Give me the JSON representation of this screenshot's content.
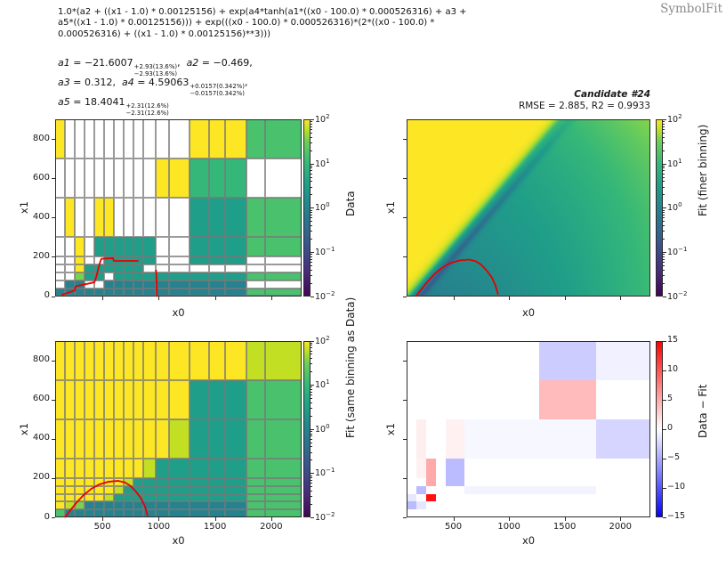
{
  "header": {
    "formula_lines": [
      "1.0*(a2 + ((x1 - 1.0) * 0.00125156) + exp(a4*tanh(a1*((x0 - 100.0) * 0.000526316) + a3 +",
      "a5*((x1 - 1.0) * 0.00125156))) + exp(((x0 - 100.0) * 0.000526316)*(2*((x0 - 100.0) *",
      "0.000526316) + ((x1 - 1.0) * 0.00125156)**3)))"
    ],
    "logo": "SymbolFit"
  },
  "parameters": {
    "lines": [
      [
        {
          "name": "a1",
          "eq": " = ",
          "value": "−21.6007",
          "err_up": "+2.93(13.6%)",
          "err_dn": "−2.93(13.6%)",
          "tail": ",  "
        },
        {
          "name": "a2",
          "eq": " = ",
          "value": "−0.469",
          "tail": ","
        }
      ],
      [
        {
          "name": "a3",
          "eq": " = ",
          "value": "0.312",
          "tail": ",  "
        },
        {
          "name": "a4",
          "eq": " = ",
          "value": "4.59063",
          "err_up": "+0.0157(0.342%)",
          "err_dn": "−0.0157(0.342%)",
          "tail": ","
        }
      ],
      [
        {
          "name": "a5",
          "eq": " = ",
          "value": "18.4041",
          "err_up": "+2.31(12.6%)",
          "err_dn": "−2.31(12.6%)",
          "tail": ""
        }
      ]
    ]
  },
  "panels": {
    "data": {
      "xlabel": "x0",
      "ylabel": "x1",
      "cbar_label": "Data"
    },
    "fit_fine": {
      "title": "Candidate #24",
      "subtitle": "RMSE = 2.885, R2 = 0.9933",
      "xlabel": "x0",
      "ylabel": "x1",
      "cbar_label": "Fit (finer binning)"
    },
    "fit_same": {
      "xlabel": "x0",
      "ylabel": "x1",
      "cbar_label": "Fit (same binning as Data)"
    },
    "diff": {
      "xlabel": "x0",
      "ylabel": "x1",
      "cbar_label": "Data − Fit"
    }
  },
  "axis": {
    "xticks": [
      500,
      1000,
      1500,
      2000
    ],
    "yticks": [
      0,
      200,
      400,
      600,
      800
    ],
    "cbar_log_exponents": [
      2,
      1,
      0,
      -1,
      -2
    ],
    "cbar_diff_ticks": [
      15,
      10,
      5,
      0,
      -5,
      -10,
      -15
    ]
  },
  "chart_data": {
    "type": "heatmap",
    "candidate": 24,
    "rmse": 2.885,
    "r2": 0.9933,
    "formula": "1.0*(a2 + ((x1 - 1.0) * 0.00125156) + exp(a4*tanh(a1*((x0 - 100.0) * 0.000526316) + a3 + a5*((x1 - 1.0) * 0.00125156))) + exp(((x0 - 100.0) * 0.000526316)*(2*((x0 - 100.0) * 0.000526316) + ((x1 - 1.0) * 0.00125156)**3)))",
    "params": {
      "a1": -21.6007,
      "a2": -0.469,
      "a3": 0.312,
      "a4": 4.59063,
      "a5": 18.4041
    },
    "param_errors": {
      "a1": "±2.93(13.6%)",
      "a4": "±0.0157(0.342%)",
      "a5": "±2.31(12.6%)"
    },
    "xlim": [
      80,
      2270
    ],
    "ylim": [
      0,
      900
    ],
    "color_scale": {
      "type": "log",
      "min": 0.01,
      "max": 100,
      "cmap": "viridis"
    },
    "diff_scale": {
      "type": "linear",
      "min": -15,
      "max": 15,
      "cmap": "bwr"
    },
    "x_edges": [
      80,
      167,
      254,
      341,
      428,
      515,
      602,
      689,
      776,
      863,
      973,
      1092,
      1274,
      1448,
      1590,
      1780,
      1946,
      2270
    ],
    "y_edges": [
      0,
      40,
      80,
      120,
      160,
      200,
      300,
      500,
      700,
      900
    ],
    "palette": {
      "W": "#ffffff",
      "Y": "#fde725",
      "LG": "#c2df23",
      "G2": "#7ad151",
      "G": "#4ac16d",
      "M": "#35b779",
      "T": "#1f9e89",
      "TD": "#26828e"
    },
    "data_grid": [
      [
        "TD",
        "TD",
        "TD",
        "TD",
        "TD",
        "TD",
        "TD",
        "TD",
        "TD",
        "TD",
        "TD",
        "TD",
        "TD",
        "TD",
        "TD",
        "G",
        "G"
      ],
      [
        "W",
        "TD",
        "TD",
        "W",
        "W",
        "TD",
        "TD",
        "TD",
        "TD",
        "TD",
        "TD",
        "TD",
        "TD",
        "TD",
        "TD",
        "W",
        "W"
      ],
      [
        "W",
        "W",
        "G2",
        "T",
        "T",
        "W",
        "T",
        "T",
        "T",
        "T",
        "T",
        "T",
        "T",
        "T",
        "T",
        "G",
        "G"
      ],
      [
        "W",
        "W",
        "Y",
        "T",
        "T",
        "T",
        "T",
        "T",
        "T",
        "W",
        "W",
        "W",
        "W",
        "W",
        "W",
        "W",
        "W"
      ],
      [
        "W",
        "W",
        "Y",
        "W",
        "W",
        "T",
        "T",
        "T",
        "T",
        "T",
        "W",
        "W",
        "T",
        "T",
        "T",
        "W",
        "W"
      ],
      [
        "W",
        "W",
        "Y",
        "W",
        "T",
        "T",
        "T",
        "T",
        "T",
        "T",
        "W",
        "W",
        "T",
        "T",
        "T",
        "G",
        "G"
      ],
      [
        "W",
        "Y",
        "W",
        "W",
        "Y",
        "Y",
        "W",
        "W",
        "W",
        "W",
        "W",
        "W",
        "T",
        "T",
        "T",
        "G",
        "G"
      ],
      [
        "W",
        "W",
        "W",
        "W",
        "W",
        "W",
        "W",
        "W",
        "W",
        "W",
        "Y",
        "Y",
        "M",
        "M",
        "M",
        "W",
        "W"
      ],
      [
        "Y",
        "W",
        "W",
        "W",
        "W",
        "W",
        "W",
        "W",
        "W",
        "W",
        "W",
        "W",
        "Y",
        "Y",
        "Y",
        "G",
        "G"
      ]
    ],
    "fit_grid": [
      [
        "G",
        "TD",
        "TD",
        "TD",
        "TD",
        "TD",
        "TD",
        "TD",
        "TD",
        "TD",
        "TD",
        "TD",
        "TD",
        "TD",
        "TD",
        "G",
        "G"
      ],
      [
        "Y",
        "LG",
        "G2",
        "TD",
        "TD",
        "TD",
        "TD",
        "TD",
        "TD",
        "TD",
        "TD",
        "TD",
        "TD",
        "TD",
        "TD",
        "G",
        "G"
      ],
      [
        "Y",
        "Y",
        "Y",
        "Y",
        "Y",
        "LG",
        "T",
        "T",
        "T",
        "T",
        "T",
        "T",
        "T",
        "T",
        "T",
        "G",
        "G"
      ],
      [
        "Y",
        "Y",
        "Y",
        "Y",
        "Y",
        "Y",
        "LG",
        "T",
        "T",
        "T",
        "T",
        "T",
        "T",
        "T",
        "T",
        "G",
        "G"
      ],
      [
        "Y",
        "Y",
        "Y",
        "Y",
        "Y",
        "Y",
        "Y",
        "LG",
        "T",
        "T",
        "T",
        "T",
        "T",
        "T",
        "T",
        "G",
        "G"
      ],
      [
        "Y",
        "Y",
        "Y",
        "Y",
        "Y",
        "Y",
        "Y",
        "Y",
        "Y",
        "LG",
        "T",
        "T",
        "T",
        "T",
        "T",
        "G",
        "G"
      ],
      [
        "Y",
        "Y",
        "Y",
        "Y",
        "Y",
        "Y",
        "Y",
        "Y",
        "Y",
        "Y",
        "Y",
        "LG",
        "T",
        "T",
        "T",
        "G",
        "G"
      ],
      [
        "Y",
        "Y",
        "Y",
        "Y",
        "Y",
        "Y",
        "Y",
        "Y",
        "Y",
        "Y",
        "Y",
        "Y",
        "T",
        "T",
        "T",
        "G",
        "G"
      ],
      [
        "Y",
        "Y",
        "Y",
        "Y",
        "Y",
        "Y",
        "Y",
        "Y",
        "Y",
        "Y",
        "Y",
        "Y",
        "Y",
        "Y",
        "Y",
        "LG",
        "LG"
      ]
    ],
    "diff_cells": [
      {
        "c": 12,
        "r": 8,
        "v": -3
      },
      {
        "c": 13,
        "r": 8,
        "v": -3
      },
      {
        "c": 14,
        "r": 8,
        "v": -3
      },
      {
        "c": 12,
        "r": 7,
        "v": 4
      },
      {
        "c": 13,
        "r": 7,
        "v": 4
      },
      {
        "c": 14,
        "r": 7,
        "v": 4
      },
      {
        "c": 15,
        "r": 6,
        "v": -2.5
      },
      {
        "c": 16,
        "r": 6,
        "v": -2.5
      },
      {
        "c": 1,
        "r": 6,
        "v": 1
      },
      {
        "c": 1,
        "r": 5,
        "v": 0.8
      },
      {
        "c": 4,
        "r": 6,
        "v": 0.8
      },
      {
        "c": 5,
        "r": 6,
        "v": 0.8
      },
      {
        "c": 2,
        "r": 5,
        "v": 5
      },
      {
        "c": 2,
        "r": 4,
        "v": 5
      },
      {
        "c": 4,
        "r": 5,
        "v": -4
      },
      {
        "c": 5,
        "r": 5,
        "v": -4
      },
      {
        "c": 4,
        "r": 4,
        "v": -4
      },
      {
        "c": 5,
        "r": 4,
        "v": -4
      },
      {
        "c": 2,
        "r": 2,
        "v": 14
      },
      {
        "c": 1,
        "r": 3,
        "v": -4
      },
      {
        "c": 0,
        "r": 1,
        "v": -4
      },
      {
        "c": 0,
        "r": 2,
        "v": -1.5
      },
      {
        "c": 1,
        "r": 1,
        "v": -1.5
      },
      {
        "c": 6,
        "r": 3,
        "v": -0.7
      },
      {
        "c": 7,
        "r": 3,
        "v": -0.7
      },
      {
        "c": 8,
        "r": 3,
        "v": -0.7
      },
      {
        "c": 9,
        "r": 3,
        "v": -0.7
      },
      {
        "c": 10,
        "r": 3,
        "v": -0.7
      },
      {
        "c": 11,
        "r": 3,
        "v": -0.7
      },
      {
        "c": 12,
        "r": 3,
        "v": -0.7
      },
      {
        "c": 13,
        "r": 3,
        "v": -0.7
      },
      {
        "c": 14,
        "r": 3,
        "v": -0.7
      },
      {
        "c": 6,
        "r": 6,
        "v": -0.5
      },
      {
        "c": 7,
        "r": 6,
        "v": -0.5
      },
      {
        "c": 8,
        "r": 6,
        "v": -0.5
      },
      {
        "c": 9,
        "r": 6,
        "v": -0.5
      },
      {
        "c": 10,
        "r": 6,
        "v": -0.5
      },
      {
        "c": 11,
        "r": 6,
        "v": -0.5
      },
      {
        "c": 12,
        "r": 6,
        "v": -0.5
      },
      {
        "c": 13,
        "r": 6,
        "v": -0.5
      },
      {
        "c": 14,
        "r": 6,
        "v": -0.5
      },
      {
        "c": 15,
        "r": 8,
        "v": -0.8
      },
      {
        "c": 16,
        "r": 8,
        "v": -0.8
      }
    ],
    "red_curve": [
      [
        168,
        2
      ],
      [
        220,
        40
      ],
      [
        270,
        75
      ],
      [
        330,
        112
      ],
      [
        400,
        145
      ],
      [
        470,
        167
      ],
      [
        550,
        181
      ],
      [
        640,
        186
      ],
      [
        700,
        178
      ],
      [
        750,
        160
      ],
      [
        800,
        130
      ],
      [
        845,
        95
      ],
      [
        878,
        55
      ],
      [
        900,
        10
      ]
    ],
    "data_red_segments": [
      [
        [
          143,
          7
        ],
        [
          254,
          29
        ],
        [
          262,
          50
        ],
        [
          428,
          70
        ],
        [
          444,
          95
        ],
        [
          475,
          165
        ],
        [
          491,
          190
        ],
        [
          594,
          193
        ],
        [
          602,
          179
        ],
        [
          815,
          179
        ]
      ],
      [
        [
          977,
          131
        ],
        [
          985,
          0
        ]
      ]
    ]
  }
}
